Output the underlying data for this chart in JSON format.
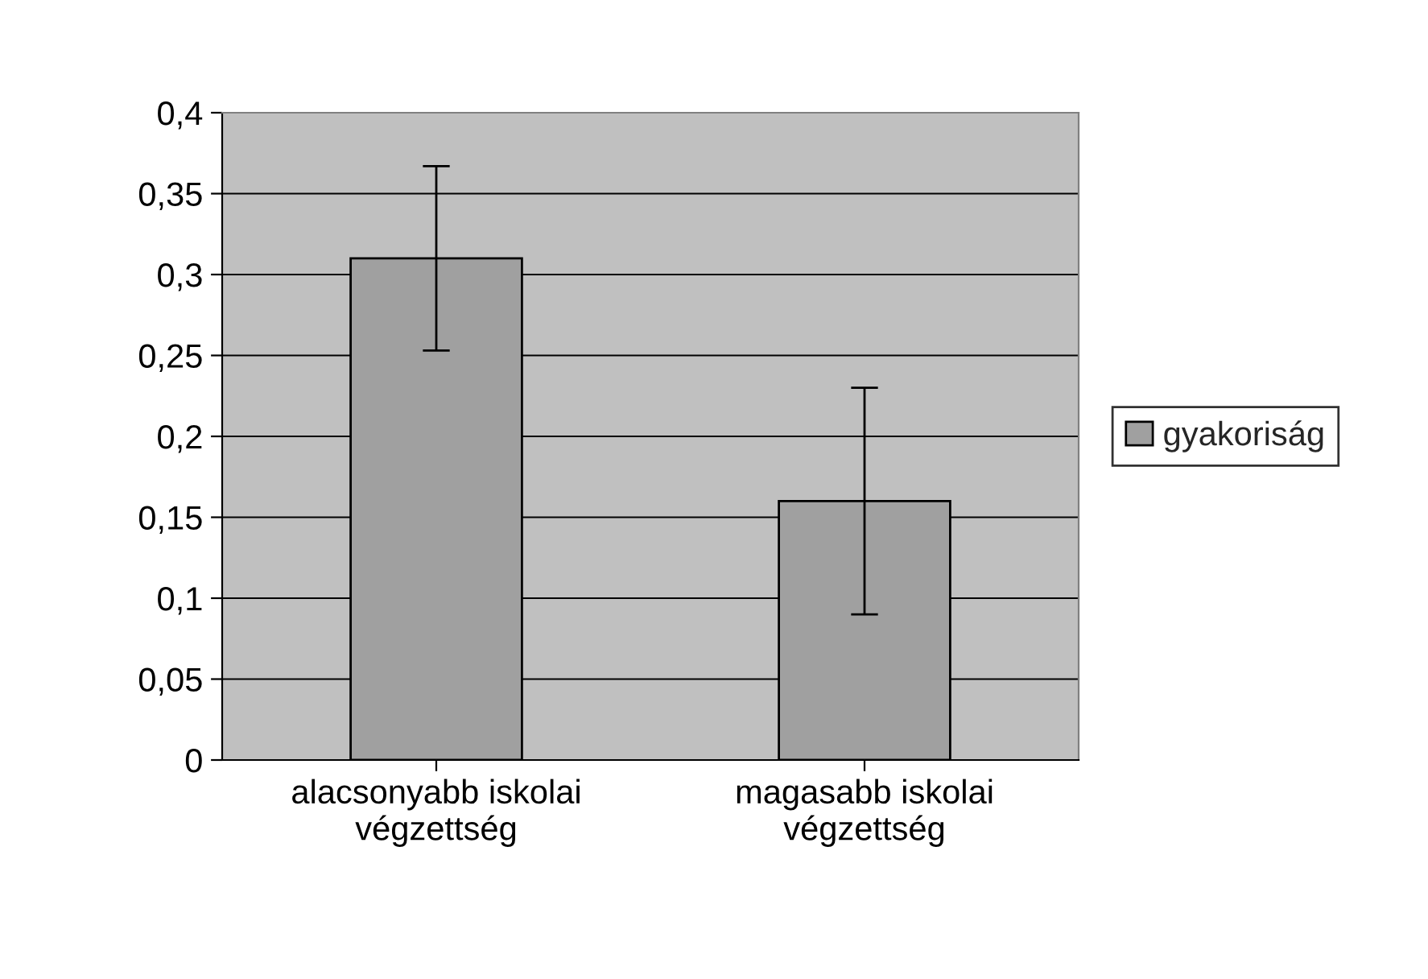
{
  "chart_data": {
    "type": "bar",
    "categories": [
      "alacsonyabb iskolai\nvégzettség",
      "magasabb iskolai\nvégzettség"
    ],
    "series": [
      {
        "name": "gyakoriság",
        "color": "#a0a0a0",
        "values": [
          0.31,
          0.16
        ],
        "errors": [
          [
            0.253,
            0.367
          ],
          [
            0.09,
            0.23
          ]
        ]
      }
    ],
    "ylim": [
      0,
      0.4
    ],
    "yticks": [
      0,
      {
        "value": 0.05,
        "label": "0,05"
      },
      {
        "value": 0.1,
        "label": "0,1"
      },
      {
        "value": 0.15,
        "label": "0,15"
      },
      {
        "value": 0.2,
        "label": "0,2"
      },
      {
        "value": 0.25,
        "label": "0,25"
      },
      {
        "value": 0.3,
        "label": "0,3"
      },
      {
        "value": 0.35,
        "label": "0,35"
      },
      {
        "value": 0.4,
        "label": "0,4"
      }
    ],
    "grid": "y",
    "legend": "right"
  }
}
